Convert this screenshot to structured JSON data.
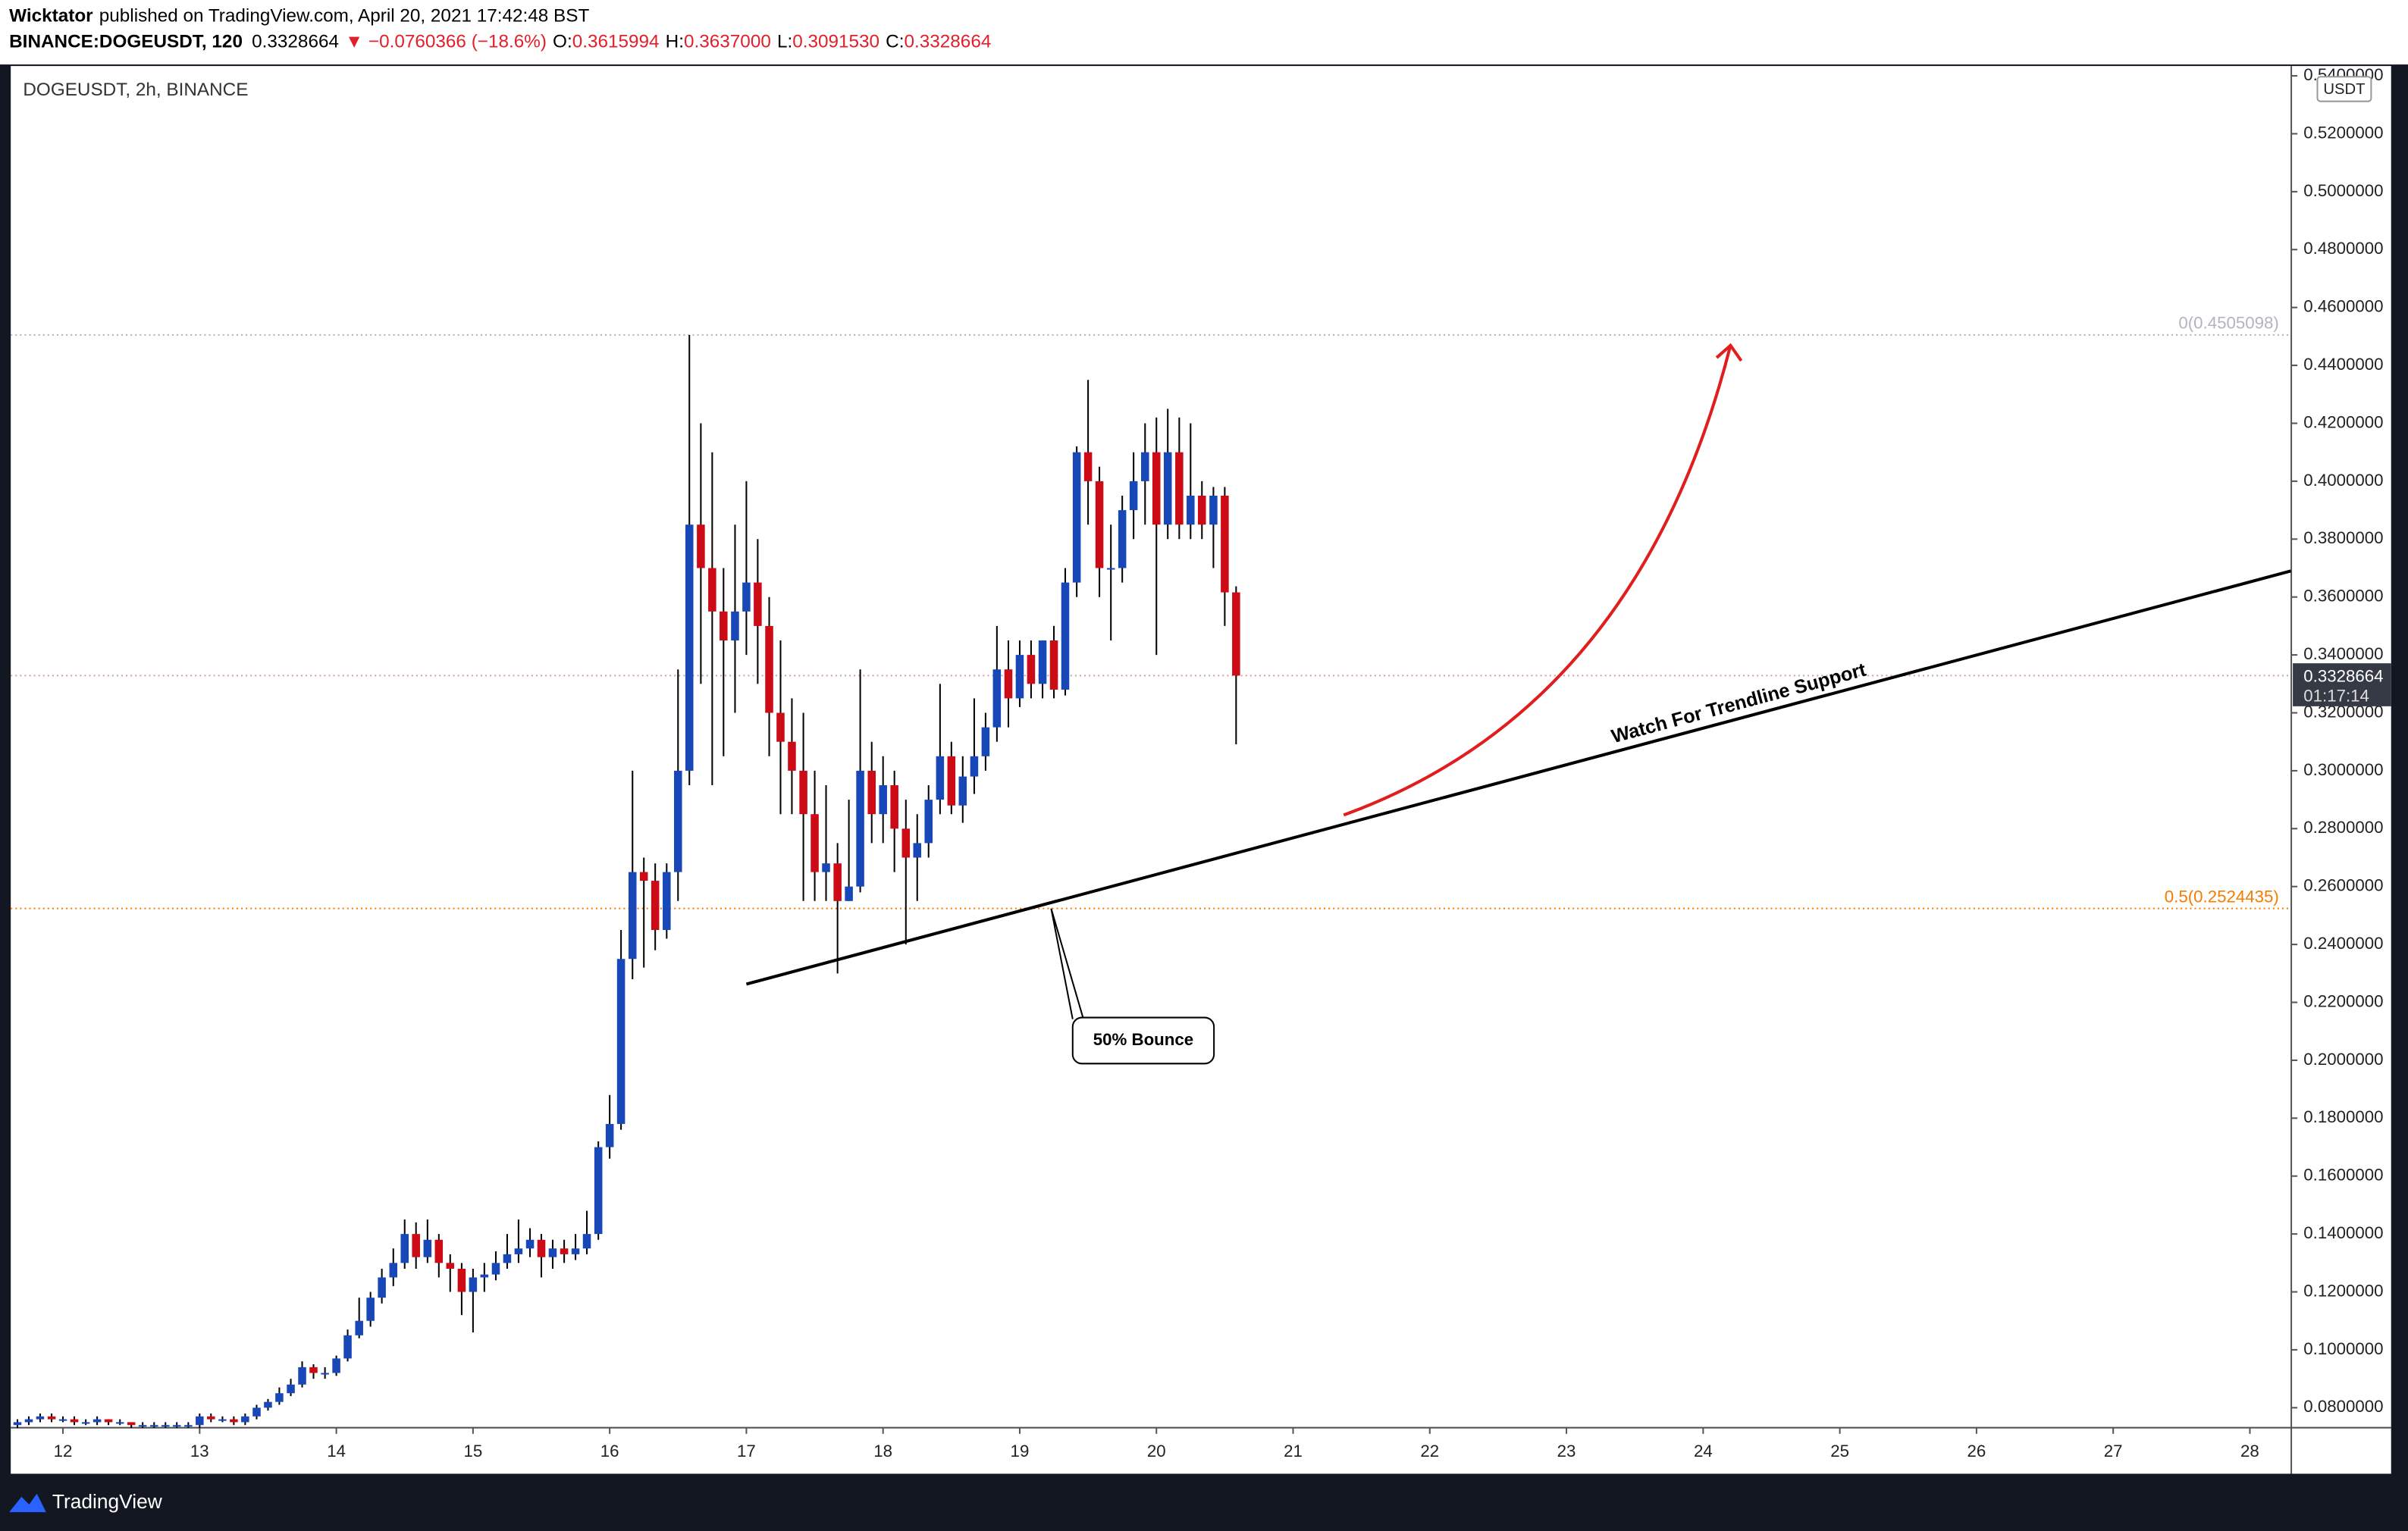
{
  "header": {
    "author": "Wicktator",
    "published": "published on TradingView.com, April 20, 2021 17:42:48 BST"
  },
  "quote": {
    "symbol": "BINANCE:DOGEUSDT, 120",
    "last": "0.3328664",
    "change": "▼ −0.0760366 (−18.6%)",
    "o_label": "O:",
    "o": "0.3615994",
    "h_label": "H:",
    "h": "0.3637000",
    "l_label": "L:",
    "l": "0.3091530",
    "c_label": "C:",
    "c": "0.3328664"
  },
  "footer": {
    "brand": "TradingView"
  },
  "chart_data": {
    "type": "candlestick",
    "title": "DOGEUSDT, 2h, BINANCE",
    "currency": "USDT",
    "up_color": "#1848b8",
    "down_color": "#cc0b17",
    "grid": false,
    "xlim": [
      11.618,
      28.303
    ],
    "xticks": [
      12,
      13,
      14,
      15,
      16,
      17,
      18,
      19,
      20,
      21,
      22,
      23,
      24,
      25,
      26,
      27,
      28
    ],
    "ylim": [
      0.0731,
      0.5434
    ],
    "yticks": [
      {
        "value": 0.08,
        "label": "0.0800000"
      },
      {
        "value": 0.1,
        "label": "0.1000000"
      },
      {
        "value": 0.12,
        "label": "0.1200000"
      },
      {
        "value": 0.14,
        "label": "0.1400000"
      },
      {
        "value": 0.16,
        "label": "0.1600000"
      },
      {
        "value": 0.18,
        "label": "0.1800000"
      },
      {
        "value": 0.2,
        "label": "0.2000000"
      },
      {
        "value": 0.22,
        "label": "0.2200000"
      },
      {
        "value": 0.24,
        "label": "0.2400000"
      },
      {
        "value": 0.26,
        "label": "0.2600000"
      },
      {
        "value": 0.28,
        "label": "0.2800000"
      },
      {
        "value": 0.3,
        "label": "0.3000000"
      },
      {
        "value": 0.32,
        "label": "0.3200000"
      },
      {
        "value": 0.34,
        "label": "0.3400000"
      },
      {
        "value": 0.36,
        "label": "0.3600000"
      },
      {
        "value": 0.38,
        "label": "0.3800000"
      },
      {
        "value": 0.4,
        "label": "0.4000000"
      },
      {
        "value": 0.42,
        "label": "0.4200000"
      },
      {
        "value": 0.44,
        "label": "0.4400000"
      },
      {
        "value": 0.46,
        "label": "0.4600000"
      },
      {
        "value": 0.48,
        "label": "0.4800000"
      },
      {
        "value": 0.5,
        "label": "0.5000000"
      },
      {
        "value": 0.52,
        "label": "0.5200000"
      },
      {
        "value": 0.54,
        "label": "0.5400000"
      }
    ],
    "x": [
      11.667,
      11.75,
      11.833,
      11.917,
      12,
      12.083,
      12.167,
      12.25,
      12.333,
      12.417,
      12.5,
      12.583,
      12.667,
      12.75,
      12.833,
      12.917,
      13,
      13.083,
      13.167,
      13.25,
      13.333,
      13.417,
      13.5,
      13.583,
      13.667,
      13.75,
      13.833,
      13.917,
      14,
      14.083,
      14.167,
      14.25,
      14.333,
      14.417,
      14.5,
      14.583,
      14.667,
      14.75,
      14.833,
      14.917,
      15,
      15.083,
      15.167,
      15.25,
      15.333,
      15.417,
      15.5,
      15.583,
      15.667,
      15.75,
      15.833,
      15.917,
      16,
      16.083,
      16.167,
      16.25,
      16.333,
      16.417,
      16.5,
      16.583,
      16.667,
      16.75,
      16.833,
      16.917,
      17,
      17.083,
      17.167,
      17.25,
      17.333,
      17.417,
      17.5,
      17.583,
      17.667,
      17.75,
      17.833,
      17.917,
      18,
      18.083,
      18.167,
      18.25,
      18.333,
      18.417,
      18.5,
      18.583,
      18.667,
      18.75,
      18.833,
      18.917,
      19,
      19.083,
      19.167,
      19.25,
      19.333,
      19.417,
      19.5,
      19.583,
      19.667,
      19.75,
      19.833,
      19.917,
      20,
      20.083,
      20.167,
      20.25,
      20.333,
      20.417,
      20.5,
      20.583
    ],
    "open": [
      0.074,
      0.075,
      0.076,
      0.077,
      0.076,
      0.076,
      0.075,
      0.075,
      0.076,
      0.075,
      0.075,
      0.074,
      0.074,
      0.074,
      0.074,
      0.074,
      0.074,
      0.077,
      0.076,
      0.076,
      0.075,
      0.077,
      0.08,
      0.082,
      0.085,
      0.088,
      0.094,
      0.092,
      0.092,
      0.097,
      0.105,
      0.11,
      0.118,
      0.125,
      0.13,
      0.14,
      0.132,
      0.138,
      0.13,
      0.128,
      0.12,
      0.125,
      0.126,
      0.13,
      0.133,
      0.135,
      0.138,
      0.132,
      0.135,
      0.133,
      0.135,
      0.14,
      0.17,
      0.178,
      0.235,
      0.265,
      0.262,
      0.245,
      0.265,
      0.3,
      0.385,
      0.37,
      0.355,
      0.345,
      0.355,
      0.365,
      0.35,
      0.32,
      0.31,
      0.3,
      0.285,
      0.265,
      0.268,
      0.255,
      0.26,
      0.3,
      0.285,
      0.295,
      0.28,
      0.27,
      0.275,
      0.29,
      0.305,
      0.288,
      0.298,
      0.305,
      0.315,
      0.335,
      0.325,
      0.34,
      0.33,
      0.345,
      0.328,
      0.365,
      0.41,
      0.4,
      0.37,
      0.37,
      0.39,
      0.4,
      0.41,
      0.385,
      0.41,
      0.385,
      0.395,
      0.385,
      0.395,
      0.3615994
    ],
    "high": [
      0.076,
      0.077,
      0.078,
      0.078,
      0.077,
      0.077,
      0.076,
      0.077,
      0.076,
      0.076,
      0.075,
      0.075,
      0.075,
      0.075,
      0.075,
      0.075,
      0.078,
      0.078,
      0.077,
      0.077,
      0.078,
      0.081,
      0.083,
      0.087,
      0.09,
      0.096,
      0.095,
      0.094,
      0.098,
      0.107,
      0.118,
      0.12,
      0.128,
      0.135,
      0.145,
      0.144,
      0.145,
      0.14,
      0.133,
      0.13,
      0.128,
      0.13,
      0.134,
      0.14,
      0.145,
      0.142,
      0.14,
      0.138,
      0.138,
      0.14,
      0.148,
      0.172,
      0.188,
      0.245,
      0.3,
      0.27,
      0.268,
      0.268,
      0.335,
      0.4505098,
      0.42,
      0.41,
      0.37,
      0.385,
      0.4,
      0.38,
      0.36,
      0.345,
      0.325,
      0.32,
      0.3,
      0.295,
      0.275,
      0.29,
      0.335,
      0.31,
      0.305,
      0.3,
      0.29,
      0.285,
      0.295,
      0.33,
      0.31,
      0.305,
      0.325,
      0.32,
      0.35,
      0.345,
      0.345,
      0.345,
      0.345,
      0.35,
      0.37,
      0.412,
      0.435,
      0.405,
      0.385,
      0.395,
      0.41,
      0.42,
      0.422,
      0.425,
      0.422,
      0.42,
      0.4,
      0.398,
      0.398,
      0.3637
    ],
    "low": [
      0.073,
      0.074,
      0.075,
      0.075,
      0.075,
      0.074,
      0.074,
      0.074,
      0.074,
      0.074,
      0.073,
      0.073,
      0.073,
      0.073,
      0.073,
      0.073,
      0.073,
      0.075,
      0.075,
      0.074,
      0.074,
      0.076,
      0.079,
      0.081,
      0.084,
      0.087,
      0.09,
      0.09,
      0.091,
      0.096,
      0.104,
      0.108,
      0.116,
      0.122,
      0.128,
      0.128,
      0.13,
      0.125,
      0.12,
      0.112,
      0.106,
      0.12,
      0.124,
      0.128,
      0.13,
      0.132,
      0.125,
      0.128,
      0.13,
      0.131,
      0.133,
      0.138,
      0.166,
      0.176,
      0.228,
      0.232,
      0.238,
      0.242,
      0.255,
      0.295,
      0.33,
      0.295,
      0.305,
      0.32,
      0.34,
      0.33,
      0.305,
      0.285,
      0.285,
      0.255,
      0.255,
      0.255,
      0.23,
      0.255,
      0.258,
      0.275,
      0.275,
      0.265,
      0.24,
      0.255,
      0.27,
      0.285,
      0.285,
      0.282,
      0.292,
      0.3,
      0.31,
      0.315,
      0.322,
      0.325,
      0.325,
      0.325,
      0.326,
      0.36,
      0.385,
      0.36,
      0.345,
      0.365,
      0.38,
      0.385,
      0.34,
      0.38,
      0.38,
      0.38,
      0.38,
      0.37,
      0.35,
      0.309153
    ],
    "close": [
      0.075,
      0.076,
      0.077,
      0.076,
      0.076,
      0.075,
      0.075,
      0.076,
      0.075,
      0.075,
      0.074,
      0.074,
      0.074,
      0.074,
      0.074,
      0.074,
      0.077,
      0.076,
      0.076,
      0.075,
      0.077,
      0.08,
      0.082,
      0.085,
      0.088,
      0.094,
      0.092,
      0.092,
      0.097,
      0.105,
      0.11,
      0.118,
      0.125,
      0.13,
      0.14,
      0.132,
      0.138,
      0.13,
      0.128,
      0.12,
      0.125,
      0.126,
      0.13,
      0.133,
      0.135,
      0.138,
      0.132,
      0.135,
      0.133,
      0.135,
      0.14,
      0.17,
      0.178,
      0.235,
      0.265,
      0.262,
      0.245,
      0.265,
      0.3,
      0.385,
      0.37,
      0.355,
      0.345,
      0.355,
      0.365,
      0.35,
      0.32,
      0.31,
      0.3,
      0.285,
      0.265,
      0.268,
      0.255,
      0.26,
      0.3,
      0.285,
      0.295,
      0.28,
      0.27,
      0.275,
      0.29,
      0.305,
      0.288,
      0.298,
      0.305,
      0.315,
      0.335,
      0.325,
      0.34,
      0.33,
      0.345,
      0.328,
      0.365,
      0.41,
      0.4,
      0.37,
      0.37,
      0.39,
      0.4,
      0.41,
      0.385,
      0.41,
      0.385,
      0.395,
      0.385,
      0.395,
      0.3615994,
      0.3328664
    ],
    "last_price": {
      "value": 0.3328664,
      "label": "0.3328664",
      "countdown": "01:17:14"
    },
    "levels": [
      {
        "value": 0.4505098,
        "label": "0(0.4505098)",
        "color": "#b2b5be"
      },
      {
        "value": 0.2524435,
        "label": "0.5(0.2524435)",
        "color": "#f57c00"
      }
    ],
    "annotations": {
      "trendline": {
        "x": [
          17.0,
          28.3
        ],
        "y": [
          0.2263,
          0.369
        ],
        "label": "Watch For Trendline Support",
        "color": "#000000"
      },
      "arrow": {
        "x": [
          21.37,
          24.2
        ],
        "y": [
          0.2847,
          0.4469
        ],
        "color": "#e01e1e"
      },
      "callout": {
        "text": "50% Bounce",
        "x": 19.23,
        "y": 0.2524
      }
    }
  }
}
